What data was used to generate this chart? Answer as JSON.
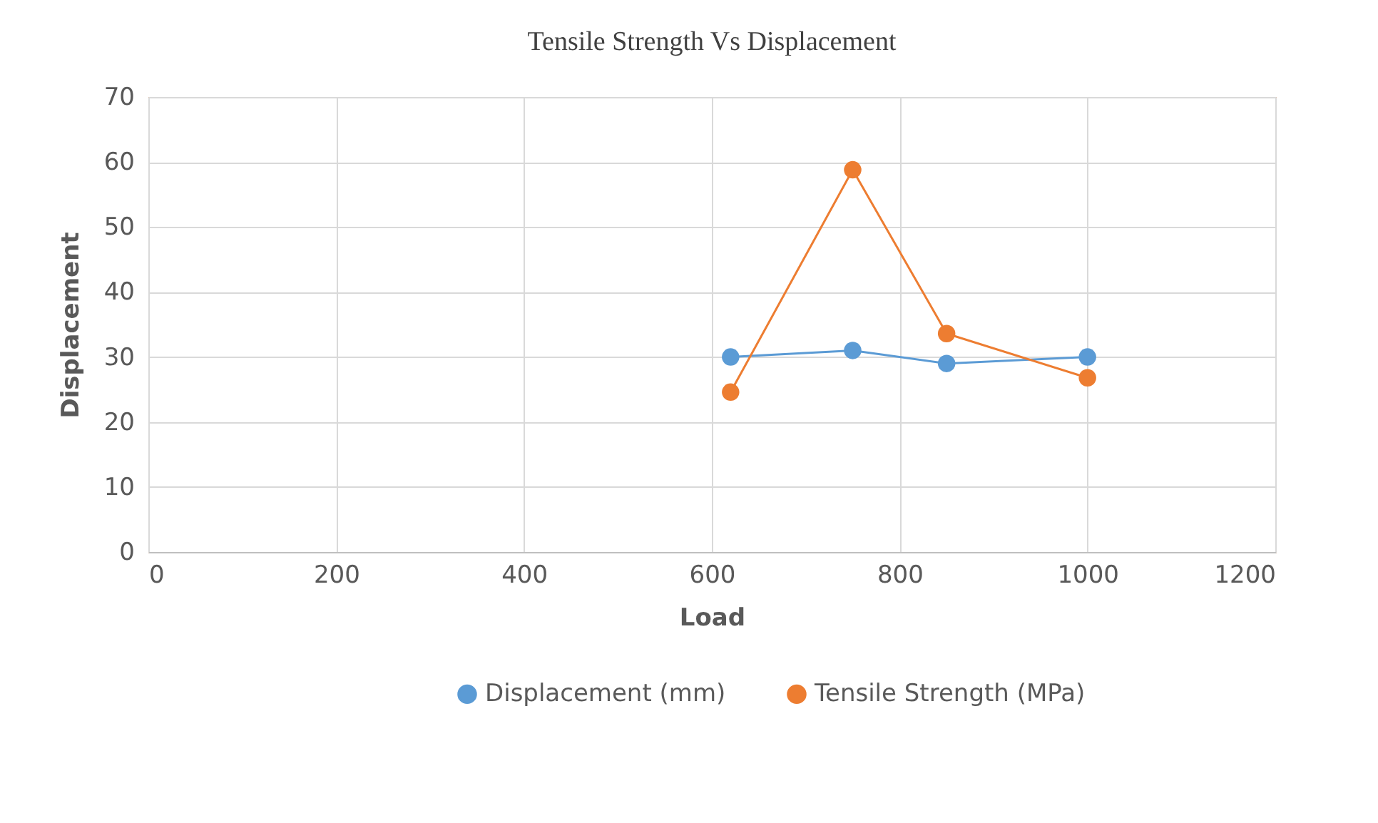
{
  "chart_data": {
    "type": "line",
    "title": "Tensile Strength Vs Displacement",
    "xlabel": "Load",
    "ylabel": "Displacement",
    "x": [
      620,
      750,
      850,
      1000
    ],
    "series": [
      {
        "name": "Displacement (mm)",
        "color": "#5b9bd5",
        "values": [
          30,
          31,
          29,
          30
        ]
      },
      {
        "name": "Tensile Strength (MPa)",
        "color": "#ed7d31",
        "values": [
          24.6,
          58.8,
          33.6,
          26.8
        ]
      }
    ],
    "xlim": [
      0,
      1200
    ],
    "xticks": [
      0,
      200,
      400,
      600,
      800,
      1000,
      1200
    ],
    "ylim": [
      0,
      70
    ],
    "yticks": [
      0,
      10,
      20,
      30,
      40,
      50,
      60,
      70
    ],
    "grid": true,
    "legend": "bottom",
    "marker": "circle",
    "line_style": "solid"
  }
}
